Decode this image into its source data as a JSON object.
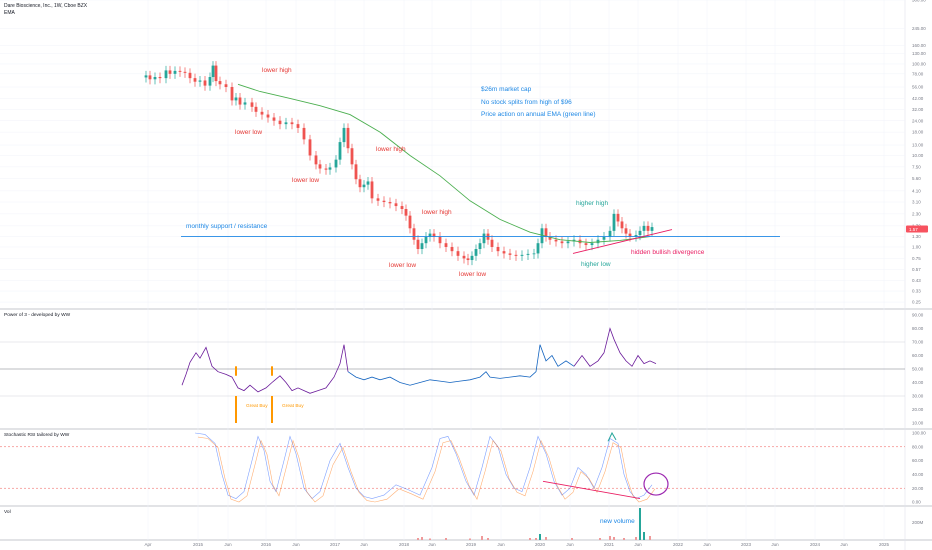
{
  "header": {
    "symbol_line": "Dare Bioscience, Inc., 1W, Cboe BZX",
    "indicator": "EMA"
  },
  "colors": {
    "up": "#26a69a",
    "down": "#ef5350",
    "ema": "#4caf50",
    "annot_red": "#e53935",
    "annot_blue": "#1e88e5",
    "annot_green": "#26a69a",
    "annot_pink": "#e91e63",
    "support": "#1e88e5",
    "trend_pink": "#e91e63",
    "power_blue": "#1565c0",
    "power_purple": "#6a1b9a",
    "orange": "#ff9800",
    "circle": "#9c27b0"
  },
  "chart_data": [
    {
      "type": "candlestick",
      "pane": "price",
      "y_scale": "log",
      "x_ticks": [
        "Apr",
        "2015",
        "Jun",
        "2016",
        "Jun",
        "2017",
        "Jun",
        "2018",
        "Jun",
        "2019",
        "Jun",
        "2020",
        "Jun",
        "2021",
        "Jun",
        "2022",
        "Jun",
        "2023",
        "Jun",
        "2024",
        "Jun",
        "2025"
      ],
      "y_ticks": [
        "500.00",
        "245.00",
        "160.00",
        "130.00",
        "100.00",
        "78.00",
        "56.00",
        "42.00",
        "32.00",
        "24.00",
        "18.00",
        "13.00",
        "10.00",
        "7.50",
        "5.60",
        "4.10",
        "3.10",
        "2.30",
        "1.70",
        "1.30",
        "1.00",
        "0.75",
        "0.57",
        "0.43",
        "0.33",
        "0.25"
      ],
      "last_price": "1.57",
      "series": [
        {
          "name": "EMA"
        }
      ],
      "annotations": [
        {
          "text": "lower high",
          "color": "annot_red"
        },
        {
          "text": "lower low",
          "color": "annot_red"
        },
        {
          "text": "lower high",
          "color": "annot_red"
        },
        {
          "text": "lower low",
          "color": "annot_red"
        },
        {
          "text": "lower high",
          "color": "annot_red"
        },
        {
          "text": "lower low",
          "color": "annot_red"
        },
        {
          "text": "lower low",
          "color": "annot_red"
        },
        {
          "text": "higher high",
          "color": "annot_green"
        },
        {
          "text": "higher low",
          "color": "annot_green"
        },
        {
          "text": "hidden bullish divergence",
          "color": "annot_pink"
        },
        {
          "text": "monthly support / resistance",
          "color": "annot_blue"
        },
        {
          "text": "$26m market cap",
          "color": "annot_blue"
        },
        {
          "text": "No stock splits from high of $96",
          "color": "annot_blue"
        },
        {
          "text": "Price action on annual EMA (green line)",
          "color": "annot_blue"
        }
      ]
    },
    {
      "type": "line",
      "pane": "oscillator",
      "title": "Power of 3 - developed by WW",
      "y_ticks": [
        "90.00",
        "80.00",
        "70.00",
        "60.00",
        "50.00",
        "40.00",
        "30.00",
        "20.00",
        "10.00"
      ],
      "labels": [
        "Great Buy",
        "Great Buy"
      ]
    },
    {
      "type": "line",
      "pane": "oscillator",
      "title": "Stochastic RSI tailored by WW",
      "y_ticks": [
        "100.00",
        "80.00",
        "60.00",
        "40.00",
        "20.00",
        "0.00"
      ]
    },
    {
      "type": "bar",
      "pane": "volume",
      "title": "Vol",
      "y_ticks": [
        "200M"
      ],
      "annotations": [
        {
          "text": "new volume",
          "color": "annot_blue"
        }
      ]
    }
  ]
}
